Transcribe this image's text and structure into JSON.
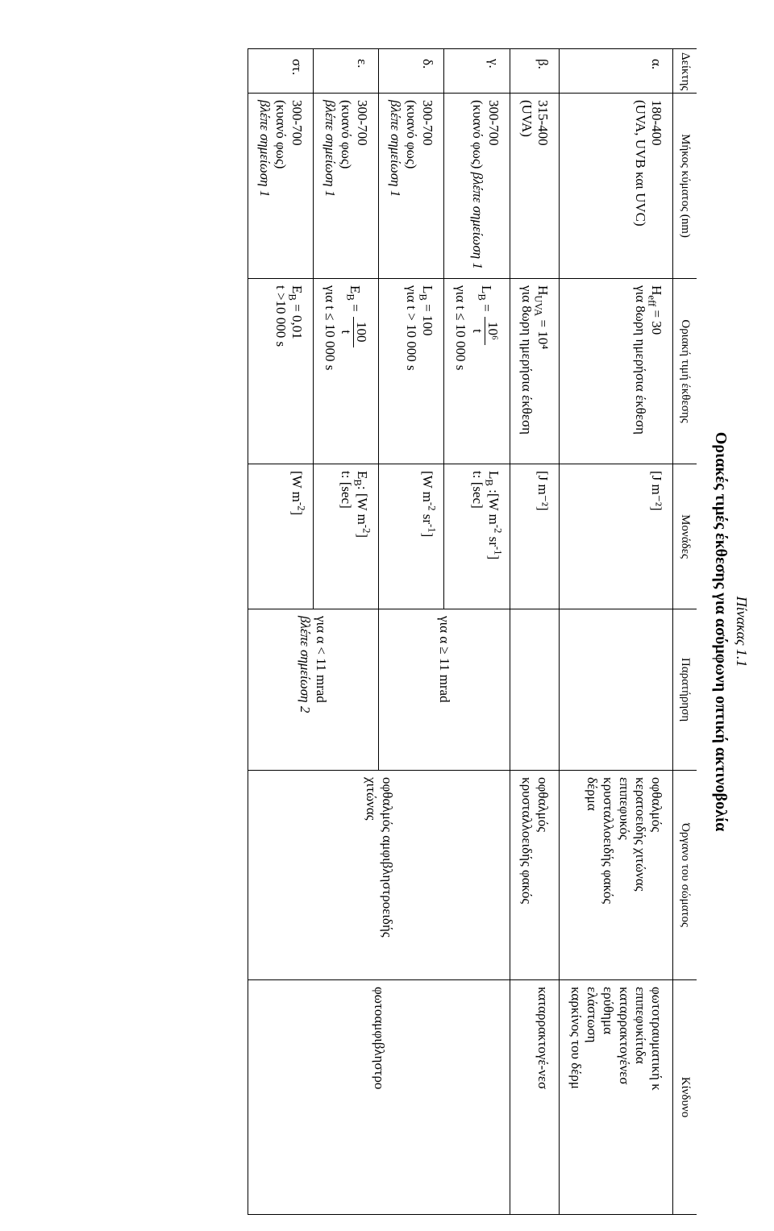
{
  "caption": "Πίνακας 1.1",
  "title": "Οριακές τιμές έκθεσης για ασύμφωνη οπτική ακτινοβολία",
  "headers": {
    "idx": "Δείκτης",
    "wavelength": "Μήκος κύματος (nm)",
    "limit": "Οριακή τιμή έκθεσης",
    "units": "Μονάδες",
    "note": "Παρατήρηση",
    "organ": "Όργανο του σώματος",
    "risk": "Κίνδυνο"
  },
  "rows": {
    "a": {
      "idx": "α.",
      "wl_line1": "180-400",
      "wl_line2": "(UVA, UVB και UVC)",
      "lim_pre": "H",
      "lim_sub": "eff",
      "lim_post": " = 30",
      "lim_line2": "για 8ωρη ημερήσια έκθεση",
      "unit": "[J m⁻²]",
      "organ": "οφθαλμός\nκερατοειδής χιτώνας\nεπιπεφυκός\nκρυσταλλοειδής φακός\nδέρμα",
      "risk": "φωτοτραυματική κ\nεπιπεφυκίτιδα\nκαταρρακτογένεσ\nερύθημα\nελάστωση\nκαρκίνος του δέρμ"
    },
    "b": {
      "idx": "β.",
      "wl_line1": "315-400",
      "wl_line2": "(UVA)",
      "lim_pre": "H",
      "lim_sub": "UVA",
      "lim_post": " = 10⁴",
      "lim_line2": "για 8ωρη ημερήσια έκθεση",
      "unit": "[J m⁻²]",
      "organ": "οφθαλμός\nκρυσταλλοειδής φακός",
      "risk": "καταρρακτογέ-νεσ"
    },
    "c": {
      "idx": "γ.",
      "wl_line1": "300-700",
      "wl_line2a": "(κυανό φως) ",
      "wl_line2b": "βλέπε σημείωση 1",
      "lim_sym": "L",
      "lim_sub": "B",
      "frac_num": "10⁶",
      "frac_den": "t",
      "lim_line2": "για t ≤ 10 000 s",
      "unit_line1": "L_B :[W m⁻² sr⁻¹]",
      "unit_line2": "t: [sec]",
      "note": "για α ≥ 11 mrad",
      "organ": "οφθαλμός αμφιβληστροειδής\nχιτώνας",
      "risk": "φωτοαμφιβληστρο"
    },
    "d": {
      "idx": "δ.",
      "wl_line1": "300-700",
      "wl_line2a": "(κυανό φως)",
      "wl_line2b": "βλέπε σημείωση 1",
      "lim_sym": "L",
      "lim_sub": "B",
      "lim_eq": " = 100",
      "lim_line2": "για t > 10 000 s",
      "unit": "[W m⁻² sr⁻¹]"
    },
    "e": {
      "idx": "ε.",
      "wl_line1": "300-700",
      "wl_line2a": "(κυανό φως)",
      "wl_line2b": "βλέπε σημείωση 1",
      "lim_sym": "E",
      "lim_sub": "B",
      "frac_num": "100",
      "frac_den": "t",
      "lim_line2": "για t ≤ 10 000 s",
      "unit_line1": "E_B: [W m⁻²]",
      "unit_line2": "t: [sec]",
      "note_line1": "για α < 11 mrad",
      "note_line2": "βλέπε σημείωση 2"
    },
    "f": {
      "idx": "στ.",
      "wl_line1": "300-700",
      "wl_line2a": "(κυανό φως)",
      "wl_line2b": "βλέπε σημείωση 1",
      "lim_sym": "E",
      "lim_sub": "B",
      "lim_eq": " = 0,01",
      "lim_line2": "t >10 000 s",
      "unit": "[W m⁻²]"
    }
  }
}
